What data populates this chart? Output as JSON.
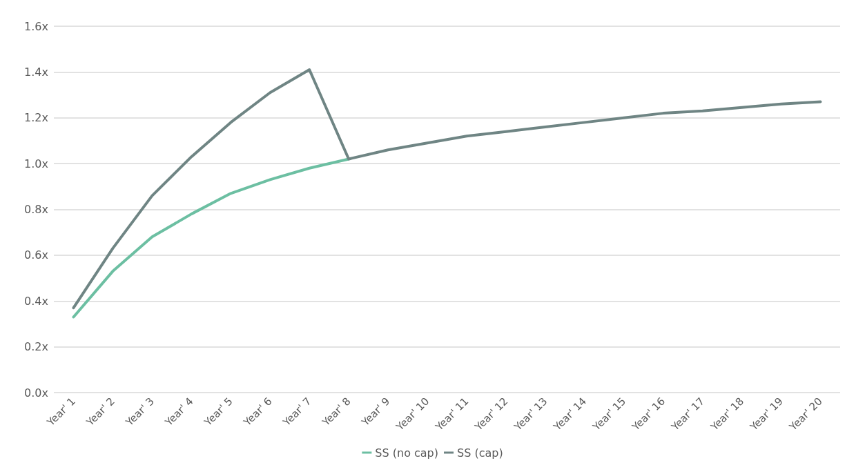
{
  "chart_data": {
    "type": "line",
    "categories": [
      "Year' 1",
      "Year' 2",
      "Year' 3",
      "Year' 4",
      "Year' 5",
      "Year' 6",
      "Year' 7",
      "Year' 8",
      "Year' 9",
      "Year' 10",
      "Year' 11",
      "Year' 12",
      "Year' 13",
      "Year' 14",
      "Year' 15",
      "Year' 16",
      "Year' 17",
      "Year' 18",
      "Year' 19",
      "Year' 20"
    ],
    "series": [
      {
        "name": "SS (no cap)",
        "color": "#6cbfa2",
        "values": [
          0.33,
          0.53,
          0.68,
          0.78,
          0.87,
          0.93,
          0.98,
          1.02,
          null,
          null,
          null,
          null,
          null,
          null,
          null,
          null,
          null,
          null,
          null,
          null
        ]
      },
      {
        "name": "SS (cap)",
        "color": "#6f8584",
        "values": [
          0.37,
          0.63,
          0.86,
          1.03,
          1.18,
          1.31,
          1.41,
          1.02,
          1.06,
          1.09,
          1.12,
          1.14,
          1.16,
          1.18,
          1.2,
          1.22,
          1.23,
          1.245,
          1.26,
          1.27
        ]
      }
    ],
    "ylim": [
      0,
      1.6
    ],
    "yticks": [
      {
        "value": 0,
        "label": "0.0x"
      },
      {
        "value": 0.2,
        "label": "0.2x"
      },
      {
        "value": 0.4,
        "label": "0.4x"
      },
      {
        "value": 0.6,
        "label": "0.6x"
      },
      {
        "value": 0.8,
        "label": "0.8x"
      },
      {
        "value": 1.0,
        "label": "1.0x"
      },
      {
        "value": 1.2,
        "label": "1.2x"
      },
      {
        "value": 1.4,
        "label": "1.4x"
      },
      {
        "value": 1.6,
        "label": "1.6x"
      }
    ],
    "grid": "y",
    "legend": "bottom",
    "marker": "none",
    "line_style": "solid"
  }
}
